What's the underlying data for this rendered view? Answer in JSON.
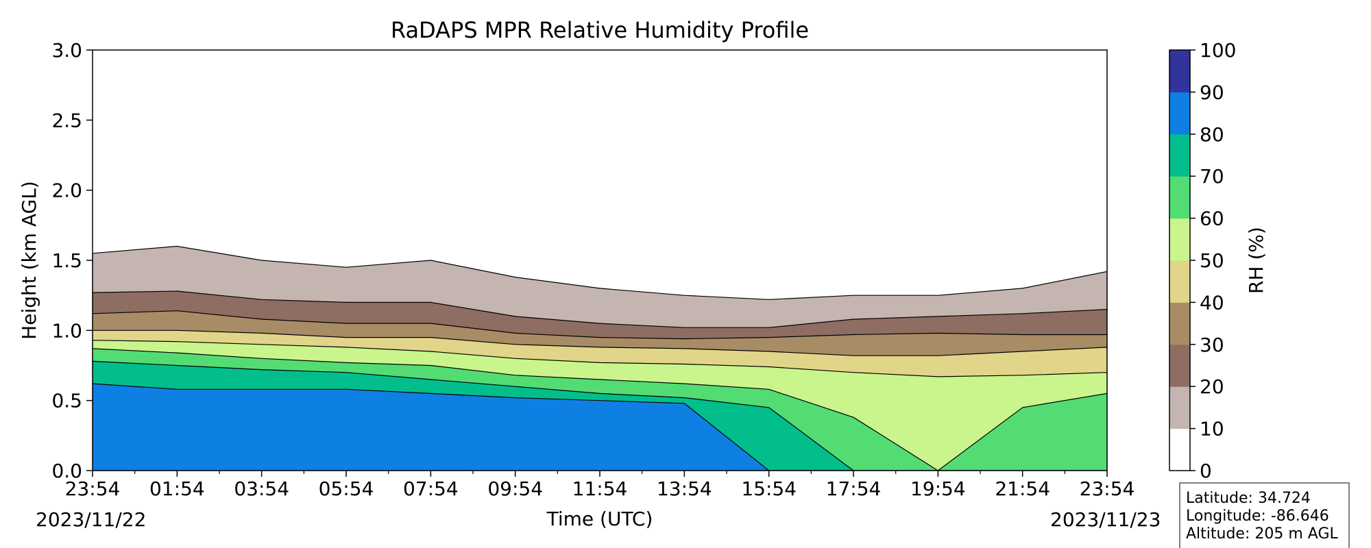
{
  "chart_data": {
    "type": "heatmap",
    "subtype": "filled-contour",
    "title": "RaDAPS MPR Relative Humidity Profile",
    "xlabel": "Time (UTC)",
    "ylabel": "Height (km AGL)",
    "x_tick_labels": [
      "23:54",
      "01:54",
      "03:54",
      "05:54",
      "07:54",
      "09:54",
      "11:54",
      "13:54",
      "15:54",
      "17:54",
      "19:54",
      "21:54",
      "23:54"
    ],
    "x_date_start": "2023/11/22",
    "x_date_end": "2023/11/23",
    "y_ticks": [
      "0.0",
      "0.5",
      "1.0",
      "1.5",
      "2.0",
      "2.5",
      "3.0"
    ],
    "ylim": [
      0,
      3
    ],
    "colorbar": {
      "label": "RH (%)",
      "ticks": [
        "0",
        "10",
        "20",
        "30",
        "40",
        "50",
        "60",
        "70",
        "80",
        "90",
        "100"
      ],
      "colors": [
        "#ffffff",
        "#c4b5b1",
        "#8e6d62",
        "#a88c66",
        "#e0d588",
        "#c9f58c",
        "#53dc74",
        "#02be8c",
        "#0e80e3",
        "#33339d"
      ]
    },
    "contour_levels": [
      {
        "level": 10,
        "hours": [
          0,
          2,
          4,
          6,
          8,
          10,
          12,
          14,
          16,
          18,
          20,
          22,
          24
        ],
        "height_km": [
          1.55,
          1.6,
          1.5,
          1.45,
          1.5,
          1.38,
          1.3,
          1.25,
          1.22,
          1.25,
          1.25,
          1.3,
          1.42
        ]
      },
      {
        "level": 20,
        "hours": [
          0,
          2,
          4,
          6,
          8,
          10,
          12,
          14,
          16,
          18,
          20,
          22,
          24
        ],
        "height_km": [
          1.27,
          1.28,
          1.22,
          1.2,
          1.2,
          1.1,
          1.05,
          1.02,
          1.02,
          1.08,
          1.1,
          1.12,
          1.15
        ]
      },
      {
        "level": 30,
        "hours": [
          0,
          2,
          4,
          6,
          8,
          10,
          12,
          14,
          16,
          18,
          20,
          22,
          24
        ],
        "height_km": [
          1.12,
          1.14,
          1.08,
          1.05,
          1.05,
          0.98,
          0.95,
          0.94,
          0.95,
          0.97,
          0.98,
          0.97,
          0.97
        ]
      },
      {
        "level": 40,
        "hours": [
          0,
          2,
          4,
          6,
          8,
          10,
          12,
          14,
          16,
          18,
          20,
          22,
          24
        ],
        "height_km": [
          1.0,
          1.0,
          0.98,
          0.95,
          0.95,
          0.9,
          0.88,
          0.87,
          0.85,
          0.82,
          0.82,
          0.85,
          0.88
        ]
      },
      {
        "level": 50,
        "hours": [
          0,
          2,
          4,
          6,
          8,
          10,
          12,
          14,
          16,
          18,
          20,
          22,
          24
        ],
        "height_km": [
          0.93,
          0.92,
          0.9,
          0.88,
          0.85,
          0.8,
          0.77,
          0.76,
          0.74,
          0.7,
          0.67,
          0.68,
          0.7
        ]
      },
      {
        "level": 60,
        "hours": [
          0,
          2,
          4,
          6,
          8,
          10,
          12,
          14,
          16,
          18,
          20,
          22,
          24
        ],
        "height_km": [
          0.87,
          0.84,
          0.8,
          0.77,
          0.75,
          0.68,
          0.65,
          0.62,
          0.58,
          0.38,
          0.0,
          0.45,
          0.55
        ]
      },
      {
        "level": 70,
        "hours": [
          0,
          2,
          4,
          6,
          8,
          10,
          12,
          14,
          16,
          18,
          20,
          22,
          24
        ],
        "height_km": [
          0.78,
          0.75,
          0.72,
          0.7,
          0.65,
          0.6,
          0.55,
          0.52,
          0.45,
          0.0,
          0.0,
          0.0,
          0.0
        ]
      },
      {
        "level": 80,
        "hours": [
          0,
          2,
          4,
          6,
          8,
          10,
          12,
          14,
          16,
          18,
          20,
          22,
          24
        ],
        "height_km": [
          0.62,
          0.58,
          0.58,
          0.58,
          0.55,
          0.52,
          0.5,
          0.48,
          0.0,
          0.0,
          0.0,
          0.0,
          0.0
        ]
      }
    ],
    "station": {
      "latitude": "Latitude: 34.724",
      "longitude": "Longitude: -86.646",
      "altitude": "Altitude: 205 m AGL"
    }
  }
}
